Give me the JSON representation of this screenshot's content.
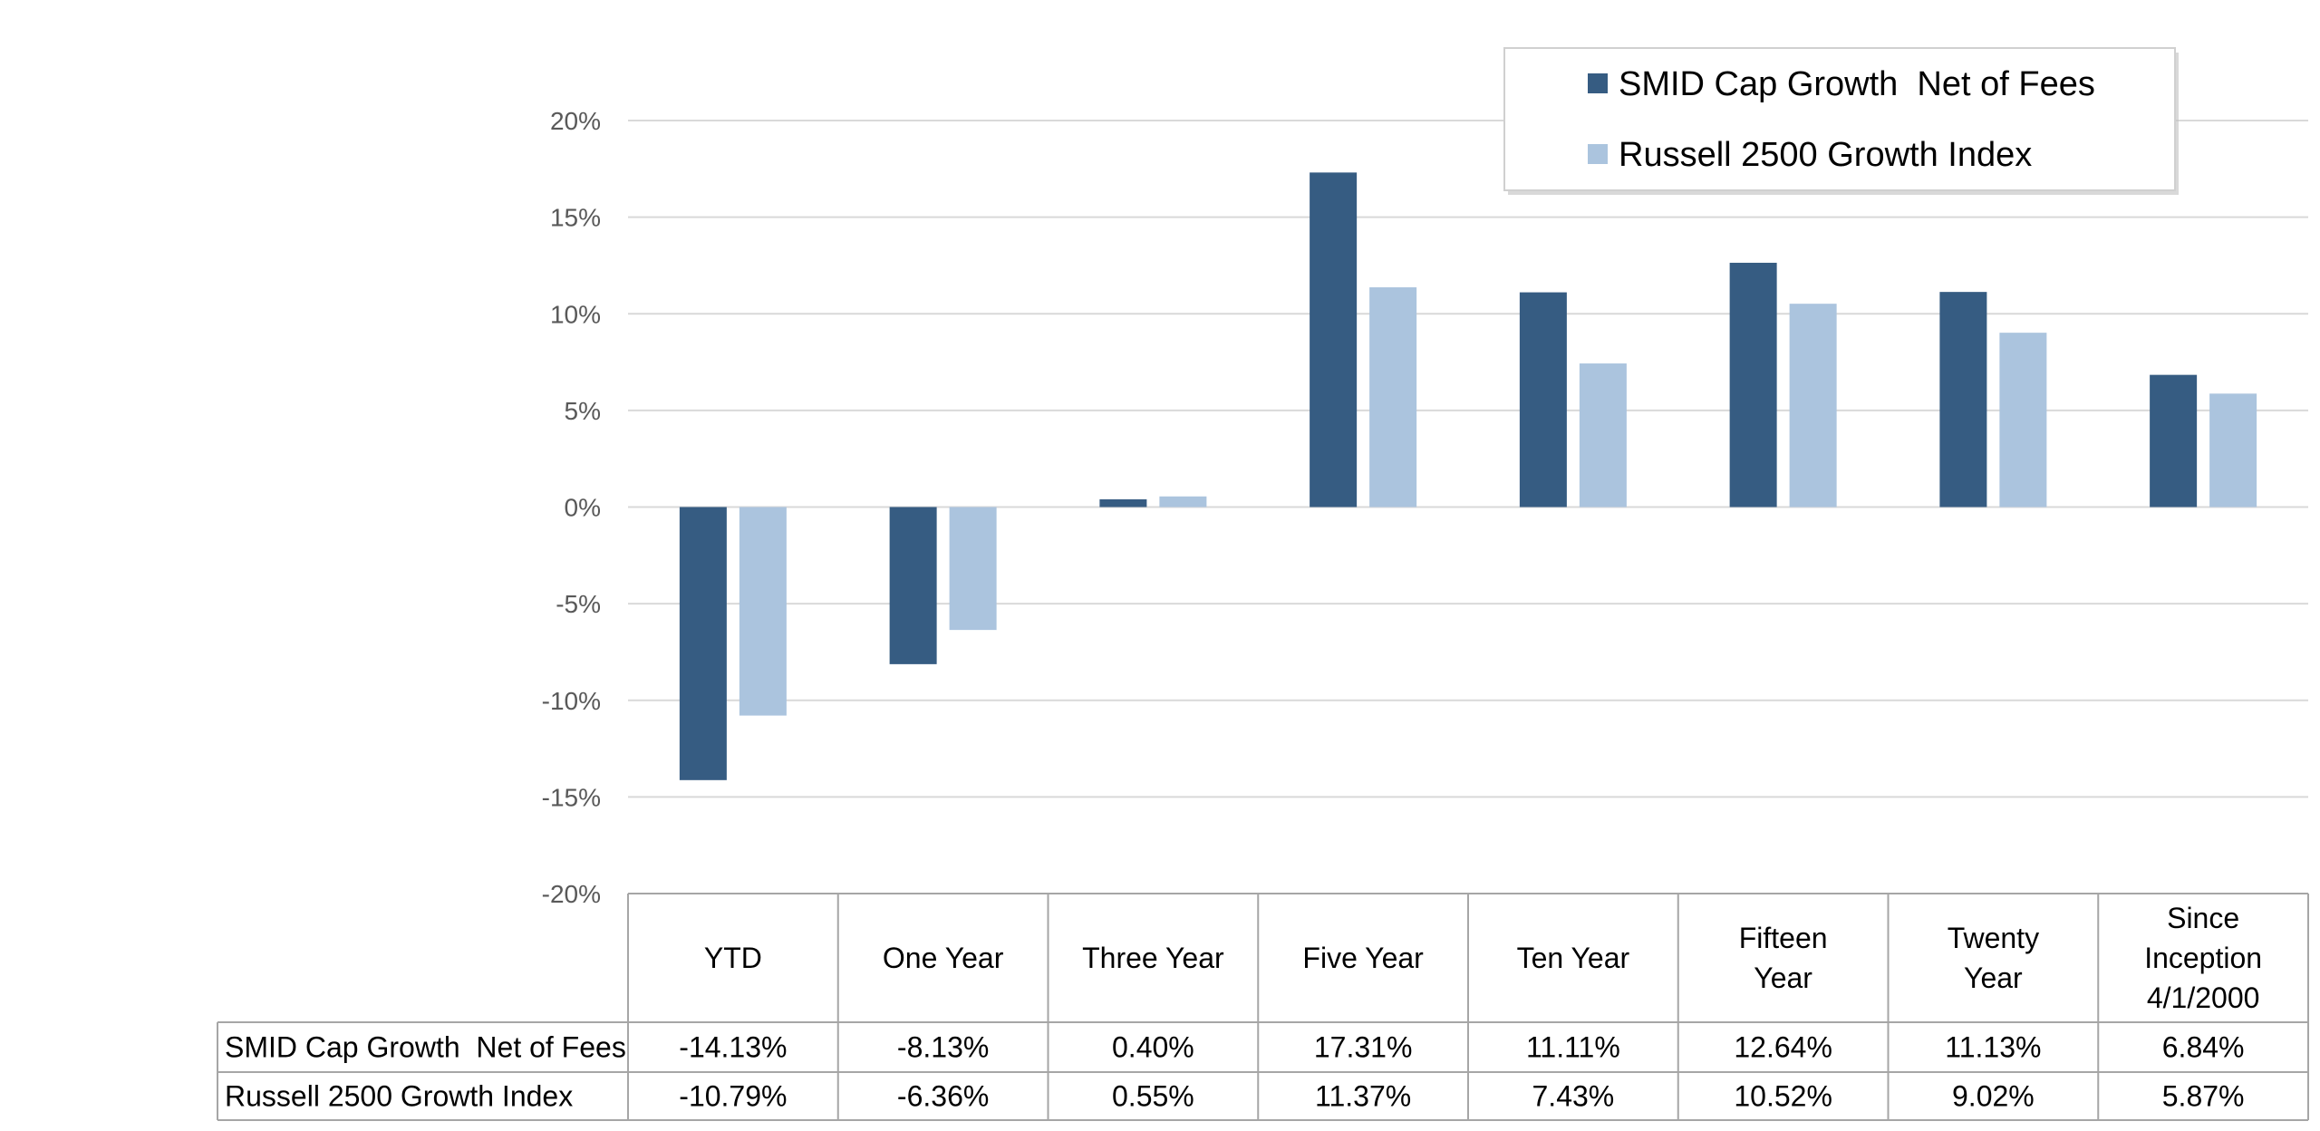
{
  "chart_data": {
    "type": "bar",
    "categories": [
      "YTD",
      "One Year",
      "Three Year",
      "Five Year",
      "Ten Year",
      "Fifteen Year",
      "Twenty Year",
      "Since Inception 4/1/2000"
    ],
    "category_lines": [
      [
        "YTD"
      ],
      [
        "One Year"
      ],
      [
        "Three Year"
      ],
      [
        "Five Year"
      ],
      [
        "Ten Year"
      ],
      [
        "Fifteen",
        "Year"
      ],
      [
        "Twenty",
        "Year"
      ],
      [
        "Since",
        "Inception",
        "4/1/2000"
      ]
    ],
    "series": [
      {
        "name": "SMID Cap Growth  Net of Fees",
        "color": "#365C82",
        "values": [
          -14.13,
          -8.13,
          0.4,
          17.31,
          11.11,
          12.64,
          11.13,
          6.84
        ],
        "labels": [
          "-14.13%",
          "-8.13%",
          "0.40%",
          "17.31%",
          "11.11%",
          "12.64%",
          "11.13%",
          "6.84%"
        ]
      },
      {
        "name": "Russell 2500 Growth Index",
        "color": "#ABC4DE",
        "values": [
          -10.79,
          -6.36,
          0.55,
          11.37,
          7.43,
          10.52,
          9.02,
          5.87
        ],
        "labels": [
          "-10.79%",
          "-6.36%",
          "0.55%",
          "11.37%",
          "7.43%",
          "10.52%",
          "9.02%",
          "5.87%"
        ]
      }
    ],
    "ylim": [
      -20,
      20
    ],
    "yticks": [
      20,
      15,
      10,
      5,
      0,
      -5,
      -10,
      -15,
      -20
    ],
    "ytick_labels": [
      "20%",
      "15%",
      "10%",
      "5%",
      "0%",
      "-5%",
      "-10%",
      "-15%",
      "-20%"
    ],
    "grid": true,
    "legend_position": "top-right",
    "data_table": true
  }
}
